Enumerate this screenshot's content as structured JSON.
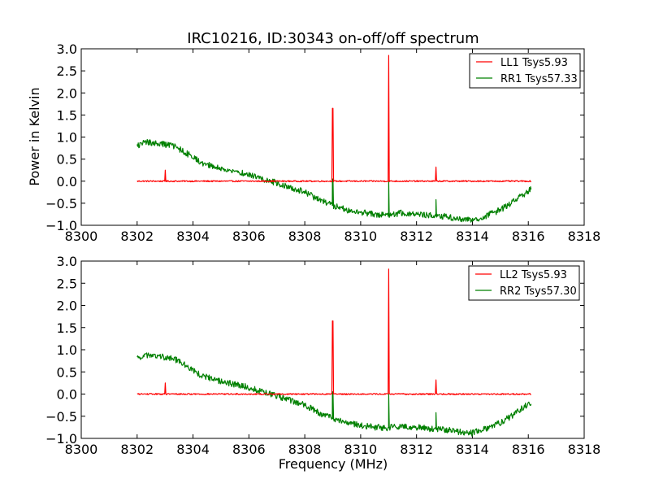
{
  "chart_data": [
    {
      "type": "line",
      "title": "IRC10216, ID:30343 on-off/off spectrum",
      "xlabel": "",
      "ylabel": "Power in Kelvin",
      "xlim": [
        8300,
        8318
      ],
      "ylim": [
        -1.0,
        3.0
      ],
      "xticks": [
        "8300",
        "8302",
        "8304",
        "8306",
        "8308",
        "8310",
        "8312",
        "8314",
        "8316",
        "8318"
      ],
      "yticks": [
        "−1.0",
        "−0.5",
        "0.0",
        "0.5",
        "1.0",
        "1.5",
        "2.0",
        "2.5",
        "3.0"
      ],
      "grid": false,
      "legend": "top-right",
      "series": [
        {
          "name": "LL1 Tsys5.93",
          "color": "#ff0000",
          "baseline": [
            [
              8302.0,
              0.0
            ],
            [
              8316.1,
              0.0
            ]
          ],
          "spikes": [
            [
              8303.0,
              0.25
            ],
            [
              8309.0,
              1.65
            ],
            [
              8311.0,
              2.85
            ],
            [
              8312.7,
              0.32
            ]
          ]
        },
        {
          "name": "RR1 Tsys57.33",
          "color": "#008000",
          "profile": [
            [
              8302.0,
              0.8
            ],
            [
              8302.3,
              0.88
            ],
            [
              8302.8,
              0.85
            ],
            [
              8303.3,
              0.8
            ],
            [
              8303.8,
              0.62
            ],
            [
              8304.3,
              0.42
            ],
            [
              8305.0,
              0.28
            ],
            [
              8305.8,
              0.18
            ],
            [
              8306.5,
              0.05
            ],
            [
              8307.3,
              -0.1
            ],
            [
              8308.0,
              -0.25
            ],
            [
              8308.6,
              -0.45
            ],
            [
              8309.0,
              -0.55
            ],
            [
              8309.5,
              -0.65
            ],
            [
              8310.0,
              -0.7
            ],
            [
              8310.5,
              -0.75
            ],
            [
              8311.0,
              -0.76
            ],
            [
              8311.5,
              -0.72
            ],
            [
              8312.0,
              -0.75
            ],
            [
              8312.5,
              -0.78
            ],
            [
              8313.0,
              -0.8
            ],
            [
              8313.5,
              -0.85
            ],
            [
              8314.0,
              -0.88
            ],
            [
              8314.5,
              -0.78
            ],
            [
              8315.0,
              -0.65
            ],
            [
              8315.5,
              -0.45
            ],
            [
              8316.1,
              -0.18
            ]
          ],
          "spikes": [
            [
              8309.0,
              0.05
            ],
            [
              8311.0,
              0.0
            ],
            [
              8312.7,
              -0.42
            ]
          ]
        }
      ]
    },
    {
      "type": "line",
      "title": "",
      "xlabel": "Frequency (MHz)",
      "ylabel": "",
      "xlim": [
        8300,
        8318
      ],
      "ylim": [
        -1.0,
        3.0
      ],
      "xticks": [
        "8300",
        "8302",
        "8304",
        "8306",
        "8308",
        "8310",
        "8312",
        "8314",
        "8316",
        "8318"
      ],
      "yticks": [
        "−1.0",
        "−0.5",
        "0.0",
        "0.5",
        "1.0",
        "1.5",
        "2.0",
        "2.5",
        "3.0"
      ],
      "grid": false,
      "legend": "top-right",
      "series": [
        {
          "name": "LL2 Tsys5.93",
          "color": "#ff0000",
          "baseline": [
            [
              8302.0,
              0.0
            ],
            [
              8316.1,
              0.0
            ]
          ],
          "spikes": [
            [
              8303.0,
              0.25
            ],
            [
              8309.0,
              1.65
            ],
            [
              8311.0,
              2.82
            ],
            [
              8312.7,
              0.32
            ]
          ]
        },
        {
          "name": "RR2 Tsys57.30",
          "color": "#008000",
          "profile": [
            [
              8302.0,
              0.8
            ],
            [
              8302.3,
              0.88
            ],
            [
              8302.8,
              0.85
            ],
            [
              8303.3,
              0.8
            ],
            [
              8303.8,
              0.62
            ],
            [
              8304.3,
              0.42
            ],
            [
              8305.0,
              0.28
            ],
            [
              8305.8,
              0.18
            ],
            [
              8306.5,
              0.05
            ],
            [
              8307.3,
              -0.1
            ],
            [
              8308.0,
              -0.25
            ],
            [
              8308.6,
              -0.45
            ],
            [
              8309.0,
              -0.55
            ],
            [
              8309.5,
              -0.65
            ],
            [
              8310.0,
              -0.7
            ],
            [
              8310.5,
              -0.75
            ],
            [
              8311.0,
              -0.76
            ],
            [
              8311.5,
              -0.72
            ],
            [
              8312.0,
              -0.75
            ],
            [
              8312.5,
              -0.78
            ],
            [
              8313.0,
              -0.8
            ],
            [
              8313.5,
              -0.85
            ],
            [
              8314.0,
              -0.88
            ],
            [
              8314.5,
              -0.78
            ],
            [
              8315.0,
              -0.65
            ],
            [
              8315.5,
              -0.45
            ],
            [
              8316.1,
              -0.18
            ]
          ],
          "spikes": [
            [
              8309.0,
              0.05
            ],
            [
              8311.0,
              0.0
            ],
            [
              8312.7,
              -0.42
            ]
          ]
        }
      ]
    }
  ]
}
